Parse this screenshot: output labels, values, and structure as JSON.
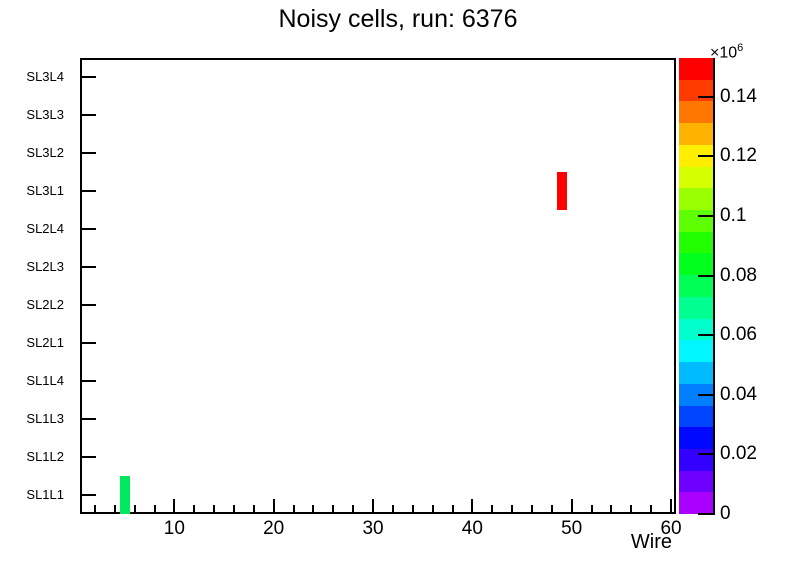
{
  "title": "Noisy cells, run: 6376",
  "x_axis": {
    "label": "Wire",
    "range": [
      0.5,
      60.5
    ],
    "major_ticks": [
      10,
      20,
      30,
      40,
      50,
      60
    ],
    "major_tick_labels": [
      "10",
      "20",
      "30",
      "40",
      "50",
      "60"
    ],
    "minor_tick_step": 2
  },
  "y_axis": {
    "labels_top_to_bottom": [
      "SL3L4",
      "SL3L3",
      "SL3L2",
      "SL3L1",
      "SL2L4",
      "SL2L3",
      "SL2L2",
      "SL2L1",
      "SL1L4",
      "SL1L3",
      "SL1L2",
      "SL1L1"
    ]
  },
  "palette": {
    "exponent_prefix": "×10",
    "exponent": "6",
    "min": 0,
    "max": 0.153,
    "ticks": [
      {
        "label": "0",
        "value": 0
      },
      {
        "label": "0.02",
        "value": 0.02
      },
      {
        "label": "0.04",
        "value": 0.04
      },
      {
        "label": "0.06",
        "value": 0.06
      },
      {
        "label": "0.08",
        "value": 0.08
      },
      {
        "label": "0.1",
        "value": 0.1
      },
      {
        "label": "0.12",
        "value": 0.12
      },
      {
        "label": "0.14",
        "value": 0.14
      }
    ],
    "band_colors_low_to_high": [
      "#AA00FF",
      "#6F00FF",
      "#3300FF",
      "#0008FF",
      "#0044FF",
      "#0080FF",
      "#00BBFF",
      "#00F7FF",
      "#00FFCC",
      "#00FF91",
      "#00FF55",
      "#00FF1A",
      "#22FF00",
      "#5EFF00",
      "#99FF00",
      "#D4FF00",
      "#FFEE00",
      "#FFB300",
      "#FF7700",
      "#FF3B00",
      "#FF0000"
    ]
  },
  "colors": {
    "background": "#FFFFFF",
    "axis": "#000000",
    "text": "#000000"
  },
  "chart_data": {
    "type": "heatmap",
    "title": "Noisy cells, run: 6376",
    "xlabel": "Wire",
    "x_range": [
      0.5,
      60.5
    ],
    "x_major_ticks": [
      10,
      20,
      30,
      40,
      50,
      60
    ],
    "y_categories_bottom_to_top": [
      "SL1L1",
      "SL1L2",
      "SL1L3",
      "SL1L4",
      "SL2L1",
      "SL2L2",
      "SL2L3",
      "SL2L4",
      "SL3L1",
      "SL3L2",
      "SL3L3",
      "SL3L4"
    ],
    "colorbar": {
      "min": 0,
      "max": 153000,
      "scale_label": "×10^6",
      "orientation": "vertical-right"
    },
    "grid": false,
    "cells": [
      {
        "wire": 5,
        "layer": "SL1L1",
        "approx_value": 76000,
        "color": "#00E95C"
      },
      {
        "wire": 49,
        "layer": "SL3L1",
        "approx_value": 152000,
        "color": "#FF0000"
      }
    ]
  }
}
